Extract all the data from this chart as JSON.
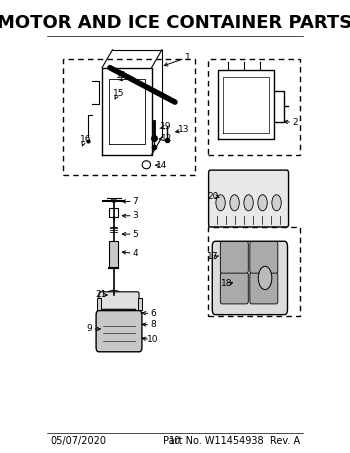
{
  "title": "MOTOR AND ICE CONTAINER PARTS",
  "title_fontsize": 13,
  "title_fontweight": "bold",
  "background_color": "#ffffff",
  "footer_left": "05/07/2020",
  "footer_center": "10",
  "footer_right": "Part No. W11454938  Rev. A",
  "footer_fontsize": 7,
  "fig_width": 3.5,
  "fig_height": 4.53,
  "dpi": 100
}
